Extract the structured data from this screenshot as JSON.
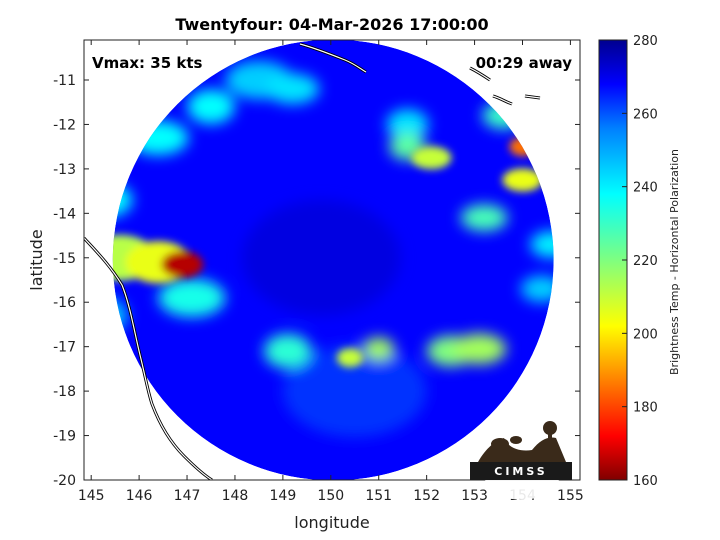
{
  "chart_data": {
    "type": "heatmap",
    "title": "Twentyfour: 04-Mar-2026 17:00:00",
    "annotations": {
      "vmax": "Vmax: 35 kts",
      "time_away": "00:29 away"
    },
    "xlabel": "longitude",
    "ylabel": "latitude",
    "xlim": [
      144.85,
      155.2
    ],
    "ylim": [
      -20,
      -10.1
    ],
    "xticks": [
      145,
      146,
      147,
      148,
      149,
      150,
      151,
      152,
      153,
      154,
      155
    ],
    "yticks": [
      -11,
      -12,
      -13,
      -14,
      -15,
      -16,
      -17,
      -18,
      -19,
      -20
    ],
    "colorbar": {
      "label": "Brightness Temp - Horizontal Polarization",
      "range": [
        160,
        280
      ],
      "ticks": [
        280,
        260,
        240,
        220,
        200,
        180,
        160
      ]
    },
    "swath_center": [
      150.05,
      -15.05
    ],
    "swath_radius_deg": 4.6,
    "background_temp": 268,
    "features": [
      {
        "lon": 146.9,
        "lat": -15.15,
        "temp": 165,
        "size": 0.35
      },
      {
        "lon": 146.4,
        "lat": -15.1,
        "temp": 205,
        "size": 0.55
      },
      {
        "lon": 145.6,
        "lat": -15.0,
        "temp": 212,
        "size": 0.6
      },
      {
        "lon": 154.0,
        "lat": -12.5,
        "temp": 185,
        "size": 0.25
      },
      {
        "lon": 154.0,
        "lat": -13.25,
        "temp": 205,
        "size": 0.3
      },
      {
        "lon": 152.1,
        "lat": -12.75,
        "temp": 210,
        "size": 0.3
      },
      {
        "lon": 151.6,
        "lat": -12.5,
        "temp": 225,
        "size": 0.35
      },
      {
        "lon": 153.1,
        "lat": -17.05,
        "temp": 215,
        "size": 0.4
      },
      {
        "lon": 152.5,
        "lat": -17.1,
        "temp": 220,
        "size": 0.4
      },
      {
        "lon": 150.4,
        "lat": -17.25,
        "temp": 210,
        "size": 0.25
      },
      {
        "lon": 151.0,
        "lat": -17.05,
        "temp": 215,
        "size": 0.3
      },
      {
        "lon": 149.1,
        "lat": -17.1,
        "temp": 232,
        "size": 0.45
      },
      {
        "lon": 146.4,
        "lat": -12.3,
        "temp": 238,
        "size": 0.45
      },
      {
        "lon": 147.5,
        "lat": -11.6,
        "temp": 238,
        "size": 0.45
      },
      {
        "lon": 145.3,
        "lat": -13.7,
        "temp": 238,
        "size": 0.45
      },
      {
        "lon": 148.5,
        "lat": -11.0,
        "temp": 245,
        "size": 0.5
      },
      {
        "lon": 149.2,
        "lat": -11.2,
        "temp": 242,
        "size": 0.4
      },
      {
        "lon": 151.6,
        "lat": -12.0,
        "temp": 242,
        "size": 0.4
      },
      {
        "lon": 153.2,
        "lat": -14.1,
        "temp": 228,
        "size": 0.35
      },
      {
        "lon": 153.6,
        "lat": -11.8,
        "temp": 230,
        "size": 0.35
      },
      {
        "lon": 147.1,
        "lat": -15.9,
        "temp": 235,
        "size": 0.5
      },
      {
        "lon": 145.2,
        "lat": -16.3,
        "temp": 245,
        "size": 0.5
      },
      {
        "lon": 154.6,
        "lat": -14.7,
        "temp": 240,
        "size": 0.35
      },
      {
        "lon": 154.4,
        "lat": -15.7,
        "temp": 245,
        "size": 0.35
      },
      {
        "lon": 149.8,
        "lat": -15.0,
        "temp": 272,
        "size": 1.5
      },
      {
        "lon": 150.5,
        "lat": -18.0,
        "temp": 262,
        "size": 1.2
      }
    ],
    "logo": {
      "text": "CIMSS"
    }
  }
}
